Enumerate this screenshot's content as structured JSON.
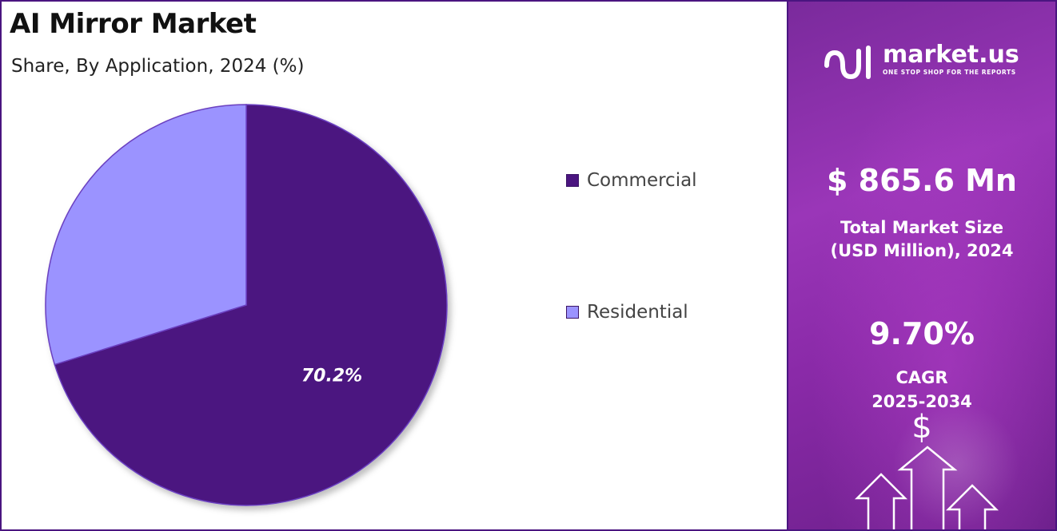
{
  "title": "AI Mirror Market",
  "subtitle": "Share, By Application, 2024 (%)",
  "chart_data": {
    "type": "pie",
    "title": "AI Mirror Market",
    "subtitle": "Share, By Application, 2024 (%)",
    "slices": [
      {
        "label": "Commercial",
        "value": 70.2,
        "color": "#4b1580",
        "data_label": "70.2%"
      },
      {
        "label": "Residential",
        "value": 29.8,
        "color": "#9b93ff",
        "data_label": ""
      }
    ],
    "start_angle_deg": 0,
    "direction": "clockwise",
    "legend_position": "right"
  },
  "legend": [
    {
      "label": "Commercial",
      "color": "#4b1580"
    },
    {
      "label": "Residential",
      "color": "#9b93ff"
    }
  ],
  "side_panel": {
    "brand_name": "market.us",
    "brand_tagline": "ONE STOP SHOP FOR THE REPORTS",
    "market_size_value": "$ 865.6 Mn",
    "market_size_label_line1": "Total Market Size",
    "market_size_label_line2": "(USD Million), 2024",
    "cagr_value": "9.70%",
    "cagr_label_line1": "CAGR",
    "cagr_label_line2": "2025-2034",
    "dollar_symbol": "$",
    "icons": [
      "market-us-logo-icon",
      "dollar-icon",
      "up-arrow-icon"
    ]
  },
  "colors": {
    "border": "#4a1580",
    "panel_gradient_start": "#7a2a9c",
    "panel_gradient_end": "#6b1f8a"
  }
}
